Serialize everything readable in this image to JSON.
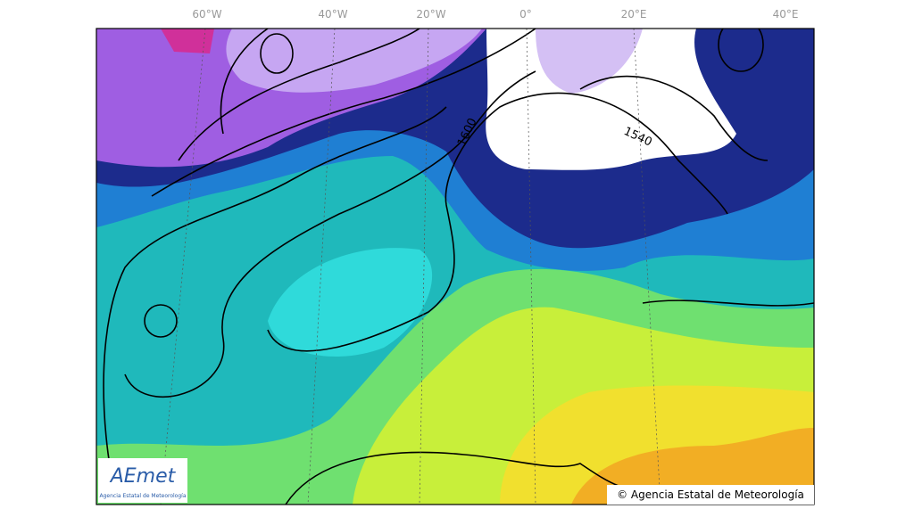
{
  "longitude_labels": [
    "60°W",
    "40°W",
    "20°W",
    "0°",
    "20°E",
    "40°E"
  ],
  "contour_labels": [
    "1600",
    "1540"
  ],
  "logo": {
    "name": "AEmet",
    "subtitle": "Agencia Estatal de Meteorología"
  },
  "copyright": "© Agencia Estatal de Meteorología"
}
